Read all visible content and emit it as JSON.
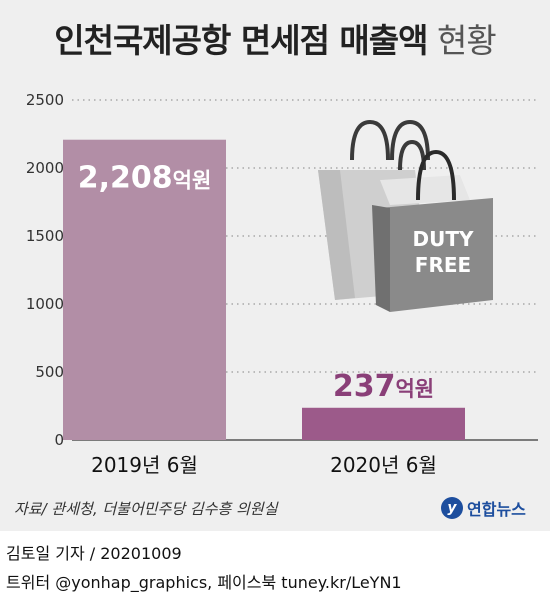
{
  "title": {
    "main": "인천국제공항 면세점 매출액",
    "sub": "현황"
  },
  "chart_data": {
    "type": "bar",
    "categories": [
      "2019년 6월",
      "2020년 6월"
    ],
    "values": [
      2208,
      237
    ],
    "data_labels": [
      {
        "number": "2,208",
        "unit": "억원"
      },
      {
        "number": "237",
        "unit": "억원"
      }
    ],
    "yticks": [
      0,
      500,
      1000,
      1500,
      2000,
      2500
    ],
    "ytick_labels": [
      "0",
      "500",
      "1000",
      "1500",
      "2000",
      "2500"
    ],
    "ylim": [
      0,
      2500
    ],
    "grid": true,
    "colors": [
      "#b28ea6",
      "#9c5a8a"
    ]
  },
  "illustration": {
    "bag_text_line1": "DUTY",
    "bag_text_line2": "FREE"
  },
  "source": "자료/ 관세청, 더불어민주당 김수흥 의원실",
  "logo": {
    "mark": "y",
    "text": "연합뉴스",
    "color": "#1d4e9e"
  },
  "credit_line1": "김토일 기자 / 20201009",
  "credit_line2": "트위터 @yonhap_graphics, 페이스북 tuney.kr/LeYN1"
}
